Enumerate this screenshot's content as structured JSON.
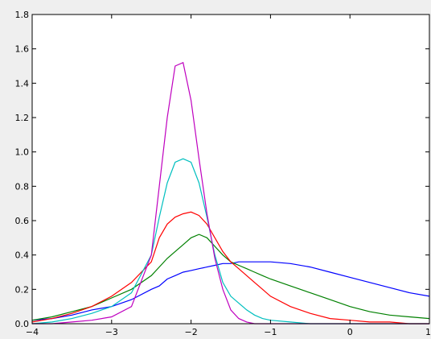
{
  "chart_data": {
    "type": "line",
    "title": "",
    "xlabel": "",
    "ylabel": "",
    "xlim": [
      -4,
      1
    ],
    "ylim": [
      0,
      1.8
    ],
    "grid": false,
    "xticks": [
      -4,
      -3,
      -2,
      -1,
      0,
      1
    ],
    "xtick_labels": [
      "−4",
      "−3",
      "−2",
      "−1",
      "0",
      "1"
    ],
    "yticks": [
      0.0,
      0.2,
      0.4,
      0.6,
      0.8,
      1.0,
      1.2,
      1.4,
      1.6,
      1.8
    ],
    "ytick_labels": [
      "0.0",
      "0.2",
      "0.4",
      "0.6",
      "0.8",
      "1.0",
      "1.2",
      "1.4",
      "1.6",
      "1.8"
    ],
    "x": [
      -4.0,
      -3.75,
      -3.5,
      -3.25,
      -3.0,
      -2.75,
      -2.5,
      -2.4,
      -2.3,
      -2.2,
      -2.1,
      -2.0,
      -1.9,
      -1.8,
      -1.7,
      -1.6,
      -1.5,
      -1.4,
      -1.3,
      -1.2,
      -1.1,
      -1.0,
      -0.75,
      -0.5,
      -0.25,
      0.0,
      0.25,
      0.5,
      0.75,
      1.0
    ],
    "series": [
      {
        "color": "#0000ff",
        "values": [
          0.02,
          0.03,
          0.05,
          0.08,
          0.1,
          0.14,
          0.2,
          0.22,
          0.26,
          0.28,
          0.3,
          0.31,
          0.32,
          0.33,
          0.34,
          0.35,
          0.35,
          0.36,
          0.36,
          0.36,
          0.36,
          0.36,
          0.35,
          0.33,
          0.3,
          0.27,
          0.24,
          0.21,
          0.18,
          0.16
        ]
      },
      {
        "color": "#008000",
        "values": [
          0.02,
          0.04,
          0.07,
          0.1,
          0.15,
          0.2,
          0.28,
          0.33,
          0.38,
          0.42,
          0.46,
          0.5,
          0.52,
          0.5,
          0.45,
          0.4,
          0.36,
          0.34,
          0.32,
          0.3,
          0.28,
          0.26,
          0.22,
          0.18,
          0.14,
          0.1,
          0.07,
          0.05,
          0.04,
          0.03
        ]
      },
      {
        "color": "#ff0000",
        "values": [
          0.01,
          0.03,
          0.06,
          0.1,
          0.16,
          0.24,
          0.36,
          0.5,
          0.58,
          0.62,
          0.64,
          0.65,
          0.63,
          0.58,
          0.5,
          0.42,
          0.36,
          0.32,
          0.28,
          0.24,
          0.2,
          0.16,
          0.1,
          0.06,
          0.03,
          0.02,
          0.01,
          0.01,
          0.0,
          0.0
        ]
      },
      {
        "color": "#00bfbf",
        "values": [
          0.0,
          0.01,
          0.03,
          0.06,
          0.1,
          0.18,
          0.4,
          0.62,
          0.82,
          0.94,
          0.96,
          0.94,
          0.82,
          0.62,
          0.4,
          0.24,
          0.16,
          0.12,
          0.08,
          0.05,
          0.03,
          0.02,
          0.01,
          0.0,
          0.0,
          0.0,
          0.0,
          0.0,
          0.0,
          0.0
        ]
      },
      {
        "color": "#bf00bf",
        "values": [
          0.0,
          0.0,
          0.01,
          0.02,
          0.04,
          0.1,
          0.4,
          0.8,
          1.2,
          1.5,
          1.52,
          1.3,
          0.96,
          0.64,
          0.38,
          0.2,
          0.08,
          0.03,
          0.01,
          0.0,
          0.0,
          0.0,
          0.0,
          0.0,
          0.0,
          0.0,
          0.0,
          0.0,
          0.0,
          0.0
        ]
      }
    ]
  }
}
